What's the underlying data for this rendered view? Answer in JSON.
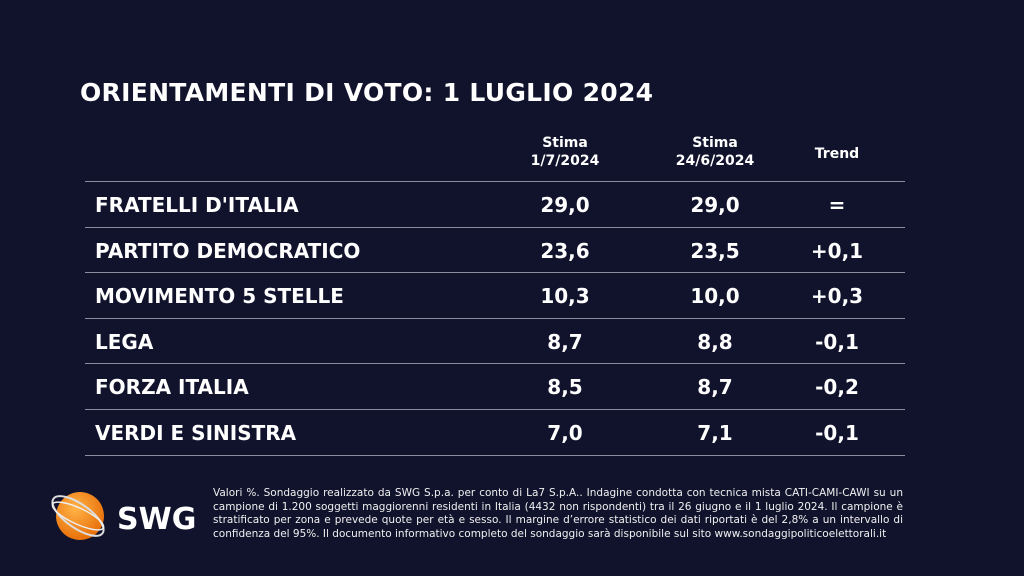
{
  "title": "ORIENTAMENTI DI VOTO: 1 LUGLIO 2024",
  "columns": [
    {
      "line1": "Stima",
      "line2": "1/7/2024"
    },
    {
      "line1": "Stima",
      "line2": "24/6/2024"
    },
    {
      "line1": "Trend",
      "line2": ""
    }
  ],
  "rows": [
    {
      "party": "FRATELLI D'ITALIA",
      "current": "29,0",
      "previous": "29,0",
      "trend": "="
    },
    {
      "party": "PARTITO DEMOCRATICO",
      "current": "23,6",
      "previous": "23,5",
      "trend": "+0,1"
    },
    {
      "party": "MOVIMENTO 5 STELLE",
      "current": "10,3",
      "previous": "10,0",
      "trend": "+0,3"
    },
    {
      "party": "LEGA",
      "current": "8,7",
      "previous": "8,8",
      "trend": "-0,1"
    },
    {
      "party": "FORZA ITALIA",
      "current": "8,5",
      "previous": "8,7",
      "trend": "-0,2"
    },
    {
      "party": "VERDI E SINISTRA",
      "current": "7,0",
      "previous": "7,1",
      "trend": "-0,1"
    }
  ],
  "note": "Valori %. Sondaggio realizzato da SWG S.p.a. per conto di La7 S.p.A.. Indagine condotta con tecnica mista CATI-CAMI-CAWI su un campione di 1.200 soggetti maggiorenni residenti in Italia (4432 non rispondenti) tra il 26 giugno e il 1 luglio 2024. Il campione è stratificato per zona e prevede quote per età e sesso. Il margine d’errore statistico dei dati riportati è del 2,8% a un intervallo di confidenza del 95%. Il documento informativo completo del sondaggio sarà disponibile sul sito www.sondaggipoliticoelettorali.it",
  "logo": {
    "text": "SWG",
    "color": "#f28c1e"
  }
}
